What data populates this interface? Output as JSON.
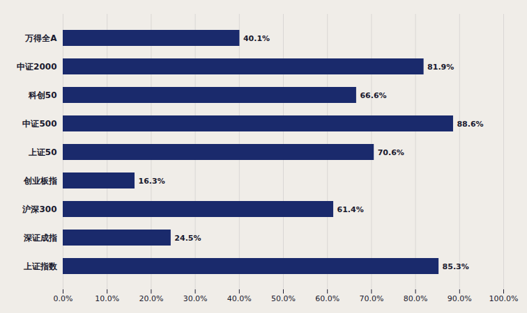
{
  "chart_data": {
    "type": "bar",
    "orientation": "horizontal",
    "categories": [
      "万得全A",
      "中证2000",
      "科创50",
      "中证500",
      "上证50",
      "创业板指",
      "沪深300",
      "深证成指",
      "上证指数"
    ],
    "values": [
      40.1,
      81.9,
      66.6,
      88.6,
      70.6,
      16.3,
      61.4,
      24.5,
      85.3
    ],
    "value_labels": [
      "40.1%",
      "81.9%",
      "66.6%",
      "88.6%",
      "70.6%",
      "16.3%",
      "61.4%",
      "24.5%",
      "85.3%"
    ],
    "color": "#1a2a6c",
    "xlim": [
      0,
      100
    ],
    "xticks": [
      {
        "value": 0,
        "label": "0.0%"
      },
      {
        "value": 10,
        "label": "10.0%"
      },
      {
        "value": 20,
        "label": "20.0%"
      },
      {
        "value": 30,
        "label": "30.0%"
      },
      {
        "value": 40,
        "label": "40.0%"
      },
      {
        "value": 50,
        "label": "50.0%"
      },
      {
        "value": 60,
        "label": "60.0%"
      },
      {
        "value": 70,
        "label": "70.0%"
      },
      {
        "value": 80,
        "label": "80.0%"
      },
      {
        "value": 90,
        "label": "90.0%"
      },
      {
        "value": 100,
        "label": "100.0%"
      }
    ],
    "grid": true,
    "data_labels": true
  }
}
